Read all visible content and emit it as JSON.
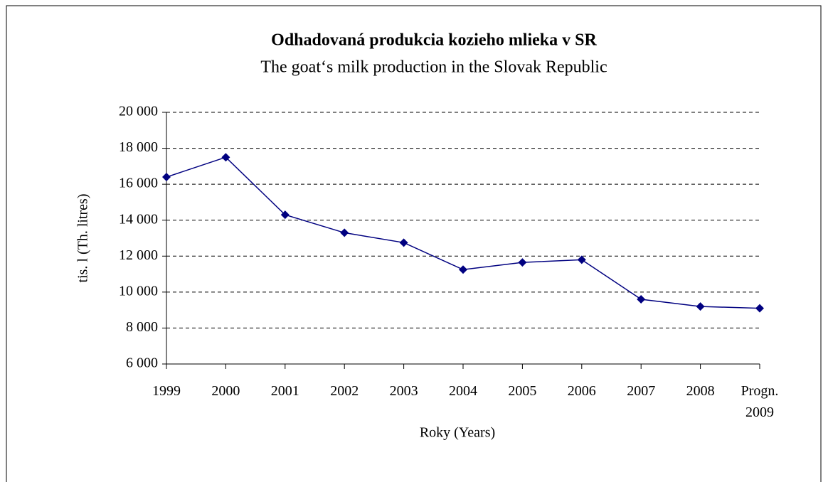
{
  "chart_data": {
    "type": "line",
    "title": "Odhadovaná produkcia kozieho mlieka v SR",
    "subtitle": "The goat‘s milk production in the Slovak Republic",
    "x_label": "Roky (Years)",
    "y_label": "tis. l (Th. litres)",
    "categories": [
      "1999",
      "2000",
      "2001",
      "2002",
      "2003",
      "2004",
      "2005",
      "2006",
      "2007",
      "2008",
      "Progn. 2009"
    ],
    "series": [
      {
        "name": "tis. l (Th. litres)",
        "color": "#000080",
        "values": [
          16400,
          17500,
          14300,
          13300,
          12750,
          11250,
          11650,
          11800,
          9600,
          9200,
          9100
        ]
      }
    ],
    "ylim": [
      6000,
      20000
    ],
    "yticks": [
      {
        "value": 6000,
        "label": "6 000"
      },
      {
        "value": 8000,
        "label": "8 000"
      },
      {
        "value": 10000,
        "label": "10 000"
      },
      {
        "value": 12000,
        "label": "12 000"
      },
      {
        "value": 14000,
        "label": "14 000"
      },
      {
        "value": 16000,
        "label": "16 000"
      },
      {
        "value": 18000,
        "label": "18 000"
      },
      {
        "value": 20000,
        "label": "20 000"
      }
    ],
    "grid": true
  }
}
